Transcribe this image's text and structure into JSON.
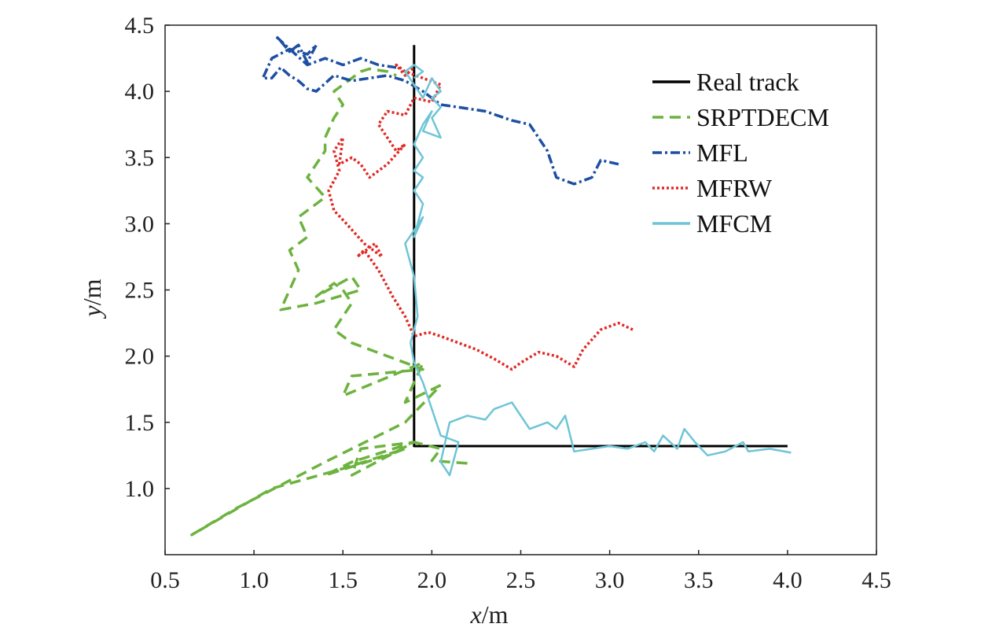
{
  "chart_data": {
    "type": "line",
    "title": "",
    "xlabel_var": "x",
    "xlabel_unit": "/m",
    "ylabel_var": "y",
    "ylabel_unit": "/m",
    "xlim": [
      0.5,
      4.5
    ],
    "ylim": [
      0.5,
      4.5
    ],
    "xticks": [
      "0.5",
      "1.0",
      "1.5",
      "2.0",
      "2.5",
      "3.0",
      "3.5",
      "4.0",
      "4.5"
    ],
    "yticks": [
      "1.0",
      "1.5",
      "2.0",
      "2.5",
      "3.0",
      "3.5",
      "4.0",
      "4.5"
    ],
    "legend_position": "top-right",
    "grid": false,
    "series": [
      {
        "name": "Real track",
        "color": "#000000",
        "style": "solid",
        "x": [
          1.9,
          1.9,
          4.0
        ],
        "y": [
          4.35,
          1.32,
          1.32
        ]
      },
      {
        "name": "SRPTDECM",
        "color": "#6db33f",
        "style": "dashed",
        "x": [
          2.2,
          2.0,
          2.05,
          1.9,
          1.55,
          1.6,
          1.9,
          1.55,
          1.4,
          1.75,
          1.85,
          1.5,
          1.1,
          0.65,
          0.9,
          1.4,
          1.85,
          2.05,
          1.85,
          1.95,
          1.5,
          1.55,
          1.95,
          1.75,
          1.55,
          1.45,
          1.55,
          1.5,
          1.45,
          1.35,
          1.55,
          1.6,
          1.35,
          1.15,
          1.25,
          1.2,
          1.3,
          1.25,
          1.4,
          1.3,
          1.4,
          1.4,
          1.45,
          1.5,
          1.45,
          1.5,
          1.55,
          1.6,
          1.65,
          1.75,
          1.8
        ],
        "y": [
          1.19,
          1.21,
          1.3,
          1.35,
          1.1,
          1.3,
          1.35,
          1.2,
          1.1,
          1.25,
          1.3,
          1.15,
          1.0,
          0.65,
          0.85,
          1.2,
          1.5,
          1.78,
          1.65,
          1.95,
          1.7,
          1.85,
          1.9,
          2.0,
          2.1,
          2.2,
          2.4,
          2.5,
          2.55,
          2.45,
          2.6,
          2.5,
          2.4,
          2.35,
          2.65,
          2.8,
          2.9,
          3.05,
          3.2,
          3.35,
          3.55,
          3.65,
          3.8,
          3.9,
          4.0,
          4.05,
          4.1,
          4.15,
          4.17,
          4.15,
          4.12
        ]
      },
      {
        "name": "MFL",
        "color": "#1d4fa3",
        "style": "dashdot",
        "x": [
          3.05,
          2.95,
          2.9,
          2.8,
          2.7,
          2.65,
          2.55,
          2.45,
          2.3,
          2.15,
          2.05,
          1.95,
          1.85,
          1.75,
          1.65,
          1.55,
          1.45,
          1.35,
          1.3,
          1.25,
          1.2,
          1.15,
          1.1,
          1.05,
          1.1,
          1.2,
          1.3,
          1.35,
          1.3,
          1.25,
          1.2,
          1.15,
          1.12,
          1.2,
          1.3,
          1.4,
          1.5,
          1.6,
          1.7,
          1.8
        ],
        "y": [
          3.45,
          3.48,
          3.35,
          3.3,
          3.35,
          3.55,
          3.75,
          3.78,
          3.85,
          3.88,
          3.9,
          4.0,
          4.08,
          4.12,
          4.1,
          4.08,
          4.12,
          4.0,
          4.02,
          4.08,
          4.12,
          4.18,
          4.1,
          4.1,
          4.25,
          4.32,
          4.28,
          4.35,
          4.22,
          4.35,
          4.3,
          4.38,
          4.42,
          4.32,
          4.2,
          4.25,
          4.2,
          4.25,
          4.2,
          4.18
        ]
      },
      {
        "name": "MFRW",
        "color": "#e02a25",
        "style": "dotted",
        "x": [
          3.13,
          3.05,
          2.95,
          2.85,
          2.8,
          2.7,
          2.6,
          2.5,
          2.45,
          2.35,
          2.25,
          2.15,
          2.05,
          1.98,
          1.9,
          1.85,
          1.78,
          1.7,
          1.62,
          1.58,
          1.68,
          1.72,
          1.62,
          1.52,
          1.45,
          1.42,
          1.48,
          1.45,
          1.5,
          1.48,
          1.55,
          1.6,
          1.65,
          1.75,
          1.85,
          1.8,
          1.75,
          1.7,
          1.75,
          1.85,
          1.9,
          2.0,
          2.05,
          1.95,
          1.85,
          1.8,
          1.85,
          1.9
        ],
        "y": [
          2.2,
          2.25,
          2.2,
          2.05,
          1.92,
          2.0,
          2.03,
          1.95,
          1.9,
          1.98,
          2.05,
          2.1,
          2.15,
          2.18,
          2.15,
          2.3,
          2.45,
          2.65,
          2.8,
          2.75,
          2.85,
          2.75,
          2.85,
          3.0,
          3.1,
          3.25,
          3.4,
          3.55,
          3.65,
          3.45,
          3.5,
          3.45,
          3.35,
          3.45,
          3.6,
          3.55,
          3.65,
          3.75,
          3.85,
          3.82,
          3.95,
          3.92,
          4.05,
          4.1,
          4.15,
          4.2,
          4.12,
          4.18
        ]
      },
      {
        "name": "MFCM",
        "color": "#6ec5d6",
        "style": "solid",
        "x": [
          4.02,
          3.9,
          3.78,
          3.75,
          3.65,
          3.55,
          3.48,
          3.42,
          3.38,
          3.3,
          3.25,
          3.2,
          3.1,
          3.0,
          2.9,
          2.8,
          2.75,
          2.7,
          2.65,
          2.55,
          2.45,
          2.35,
          2.3,
          2.2,
          2.1,
          2.05,
          2.1,
          2.15,
          2.05,
          2.0,
          1.95,
          1.9,
          1.88,
          1.92,
          1.9,
          1.85,
          1.9,
          1.95,
          1.9,
          1.95,
          1.9,
          1.95,
          1.9,
          1.95,
          1.9,
          1.95,
          2.0,
          1.95,
          2.05,
          2.0,
          2.05,
          2.0,
          2.05,
          2.0,
          1.95,
          1.9,
          1.85,
          1.9,
          1.95,
          1.9
        ],
        "y": [
          1.27,
          1.3,
          1.28,
          1.35,
          1.28,
          1.25,
          1.35,
          1.45,
          1.3,
          1.4,
          1.28,
          1.35,
          1.3,
          1.32,
          1.3,
          1.28,
          1.55,
          1.45,
          1.5,
          1.45,
          1.65,
          1.6,
          1.52,
          1.55,
          1.5,
          1.2,
          1.1,
          1.35,
          1.4,
          1.6,
          1.8,
          1.95,
          2.1,
          2.3,
          2.6,
          2.85,
          2.95,
          3.05,
          2.9,
          3.15,
          3.25,
          3.35,
          3.4,
          3.5,
          3.6,
          3.75,
          3.85,
          3.7,
          3.65,
          3.8,
          3.88,
          3.95,
          4.0,
          4.1,
          3.95,
          4.05,
          4.15,
          4.2,
          4.15,
          4.1
        ]
      }
    ]
  }
}
